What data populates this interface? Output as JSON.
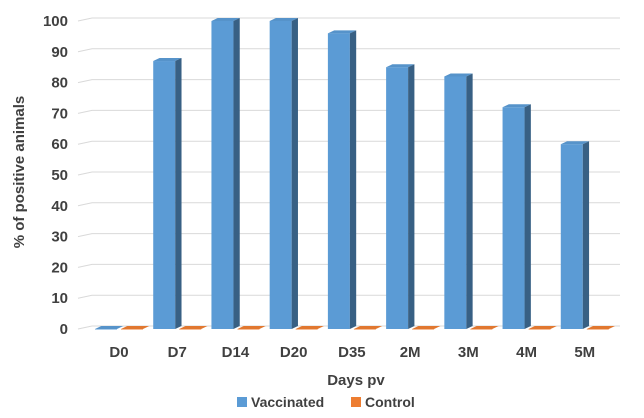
{
  "chart_data": {
    "type": "bar",
    "style": "3d-clustered-column",
    "categories": [
      "D0",
      "D7",
      "D14",
      "D20",
      "D35",
      "2M",
      "3M",
      "4M",
      "5M"
    ],
    "series": [
      {
        "name": "Vaccinated",
        "color": "#5B9BD5",
        "values": [
          0,
          87,
          100,
          100,
          96,
          85,
          82,
          72,
          60
        ]
      },
      {
        "name": "Control",
        "color": "#ED7D31",
        "values": [
          0,
          0,
          0,
          0,
          0,
          0,
          0,
          0,
          0
        ]
      }
    ],
    "xlabel": "Days pv",
    "ylabel": "% of positive animals",
    "ylim": [
      0,
      100
    ],
    "yticks": [
      0,
      10,
      20,
      30,
      40,
      50,
      60,
      70,
      80,
      90,
      100
    ],
    "grid": true,
    "legend_position": "bottom"
  }
}
